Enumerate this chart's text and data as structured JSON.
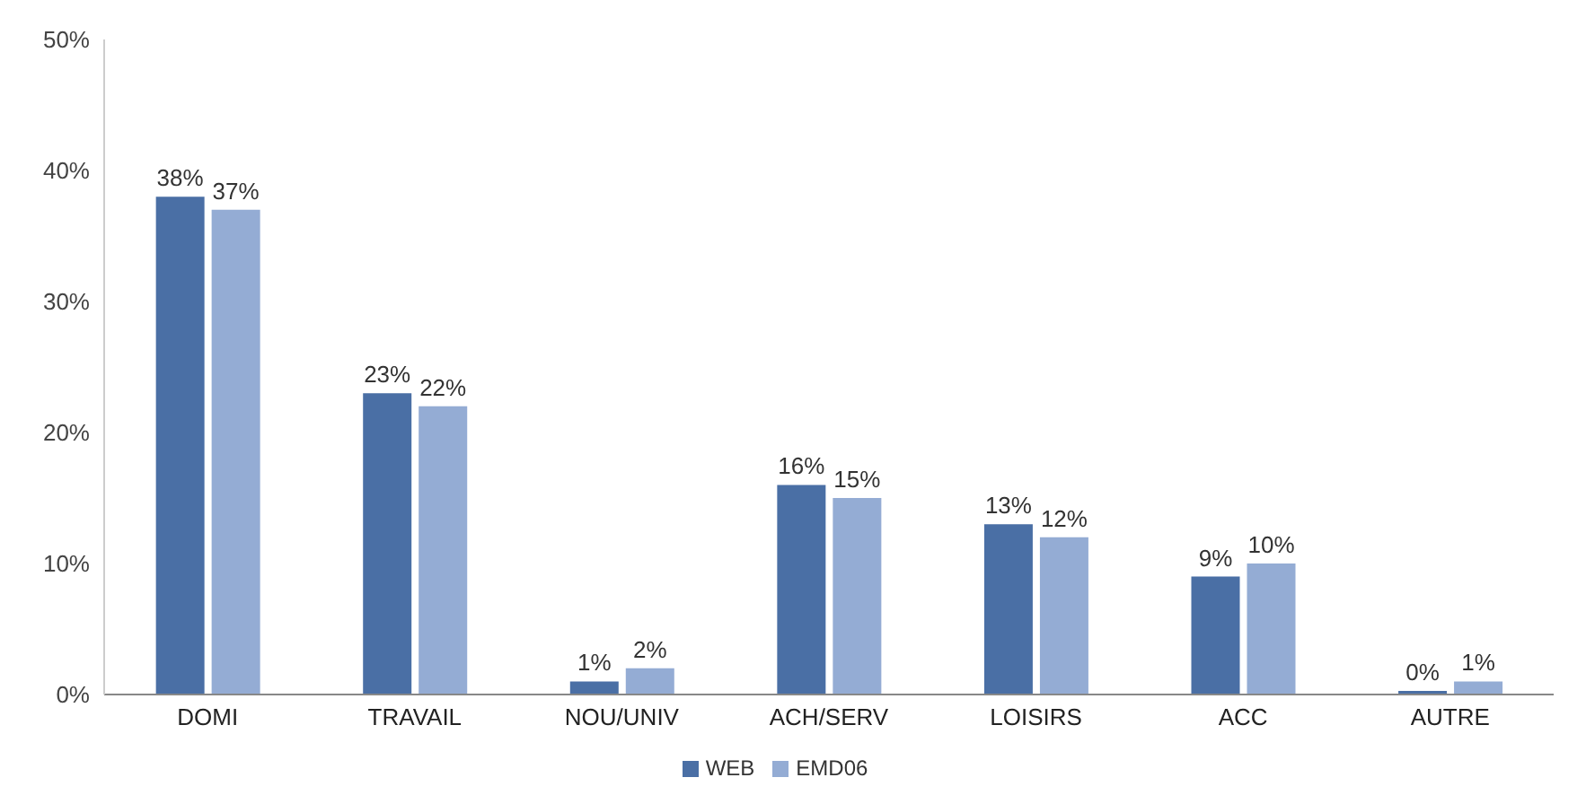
{
  "chart_data": {
    "type": "bar",
    "categories": [
      "DOMI",
      "TRAVAIL",
      "NOU/UNIV",
      "ACH/SERV",
      "LOISIRS",
      "ACC",
      "AUTRE"
    ],
    "series": [
      {
        "name": "WEB",
        "color": "#4a6fa5",
        "values": [
          38,
          23,
          1,
          16,
          13,
          9,
          0
        ],
        "value_labels": [
          "38%",
          "23%",
          "1%",
          "16%",
          "13%",
          "9%",
          "0%"
        ]
      },
      {
        "name": "EMD06",
        "color": "#94acd4",
        "values": [
          37,
          22,
          2,
          15,
          12,
          10,
          1
        ],
        "value_labels": [
          "37%",
          "22%",
          "2%",
          "15%",
          "12%",
          "10%",
          "1%"
        ]
      }
    ],
    "ylim": [
      0,
      50
    ],
    "yticks": [
      {
        "value": 0,
        "label": "0%"
      },
      {
        "value": 10,
        "label": "10%"
      },
      {
        "value": 20,
        "label": "20%"
      },
      {
        "value": 30,
        "label": "30%"
      },
      {
        "value": 40,
        "label": "40%"
      },
      {
        "value": 50,
        "label": "50%"
      }
    ],
    "grid": false,
    "legend": "bottom"
  }
}
